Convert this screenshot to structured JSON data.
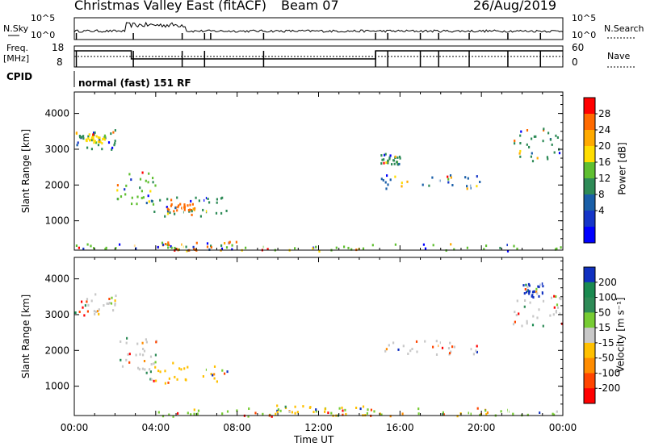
{
  "header": {
    "title": "Christmas Valley East (fitACF)",
    "beam": "Beam 07",
    "date": "26/Aug/2019"
  },
  "panels": {
    "nsky_label": "N.Sky",
    "nsky_ticks": [
      "10^5",
      "10^0"
    ],
    "nsearch_label": "N.Search",
    "nsearch_ticks": [
      "10^5",
      "10^0"
    ],
    "freq_label": "Freq.",
    "freq_unit": "[MHz]",
    "freq_ticks": [
      "18",
      "8"
    ],
    "nave_label": "Nave",
    "nave_ticks": [
      "60",
      "0"
    ],
    "cpid_label": "CPID",
    "cpid_mode": "normal (fast) 151 RF"
  },
  "chart_data": [
    {
      "type": "heatmap",
      "name": "power",
      "ylabel": "Slant Range [km]",
      "y_ticks": [
        "4000",
        "3000",
        "2000",
        "1000"
      ],
      "ylim": [
        180,
        4600
      ],
      "colorbar_label": "Power [dB]",
      "colorbar_ticks": [
        "28",
        "24",
        "20",
        "16",
        "12",
        "8",
        "4"
      ],
      "colorbar_colors": [
        "#ff0000",
        "#ff6a00",
        "#ffaa00",
        "#ffdd00",
        "#5fbf30",
        "#2e8b57",
        "#1a5fa8",
        "#1535c8",
        "#0000ff"
      ],
      "regions": [
        {
          "t0": 0.0,
          "t1": 2.0,
          "r0": 3000,
          "r1": 3650,
          "color": "#2e8b57"
        },
        {
          "t0": 0.5,
          "t1": 1.5,
          "r0": 3200,
          "r1": 3450,
          "color": "#ffdd00"
        },
        {
          "t0": 3.5,
          "t1": 7.5,
          "r0": 1100,
          "r1": 1700,
          "color": "#2e8b57"
        },
        {
          "t0": 4.5,
          "t1": 6.0,
          "r0": 1300,
          "r1": 1500,
          "color": "#ff6a00"
        },
        {
          "t0": 2.0,
          "t1": 4.0,
          "r0": 1500,
          "r1": 2400,
          "color": "#5fbf30"
        },
        {
          "t0": 0.0,
          "t1": 24.0,
          "r0": 180,
          "r1": 380,
          "color": "#5fbf30"
        },
        {
          "t0": 4.0,
          "t1": 8.0,
          "r0": 200,
          "r1": 450,
          "color": "#ff6a00"
        },
        {
          "t0": 15.0,
          "t1": 20.0,
          "r0": 1900,
          "r1": 2300,
          "color": "#1a5fa8"
        },
        {
          "t0": 15.0,
          "t1": 16.0,
          "r0": 2600,
          "r1": 2900,
          "color": "#2e8b57"
        },
        {
          "t0": 21.5,
          "t1": 24.0,
          "r0": 2700,
          "r1": 3600,
          "color": "#2e8b57"
        }
      ]
    },
    {
      "type": "heatmap",
      "name": "velocity",
      "ylabel": "Slant Range [km]",
      "y_ticks": [
        "4000",
        "3000",
        "2000",
        "1000"
      ],
      "ylim": [
        180,
        4600
      ],
      "colorbar_label": "Velocity [m s⁻¹]",
      "colorbar_ticks": [
        "200",
        "100",
        "50",
        "15",
        "-15",
        "-50",
        "-100",
        "-200"
      ],
      "colorbar_colors": [
        "#1030c0",
        "#1a8a50",
        "#2e8b57",
        "#77cc33",
        "#c8c8c8",
        "#ffc000",
        "#ff8c00",
        "#ff4500",
        "#ff0000"
      ],
      "regions": [
        {
          "t0": 0.0,
          "t1": 2.0,
          "r0": 3000,
          "r1": 3650,
          "color": "#c8c8c8"
        },
        {
          "t0": 3.5,
          "t1": 7.5,
          "r0": 1100,
          "r1": 1700,
          "color": "#ffc000"
        },
        {
          "t0": 2.0,
          "t1": 4.0,
          "r0": 1500,
          "r1": 2400,
          "color": "#c8c8c8"
        },
        {
          "t0": 4.0,
          "t1": 24.0,
          "r0": 180,
          "r1": 420,
          "color": "#77cc33"
        },
        {
          "t0": 9.0,
          "t1": 15.0,
          "r0": 200,
          "r1": 500,
          "color": "#ffc000"
        },
        {
          "t0": 15.0,
          "t1": 20.0,
          "r0": 1900,
          "r1": 2300,
          "color": "#c8c8c8"
        },
        {
          "t0": 21.5,
          "t1": 24.0,
          "r0": 2700,
          "r1": 3600,
          "color": "#c8c8c8"
        },
        {
          "t0": 22.0,
          "t1": 23.0,
          "r0": 3500,
          "r1": 3900,
          "color": "#1030c0"
        }
      ]
    }
  ],
  "x_axis": {
    "label": "Time UT",
    "ticks": [
      "00:00",
      "04:00",
      "08:00",
      "12:00",
      "16:00",
      "20:00",
      "00:00"
    ],
    "xlim": [
      0,
      24
    ]
  }
}
